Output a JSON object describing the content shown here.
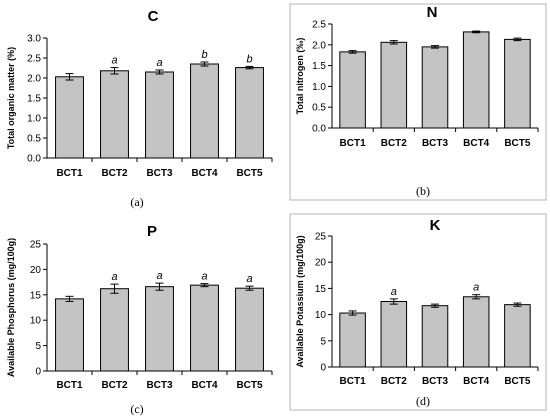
{
  "colors": {
    "bar_fill": "#c4c4c4",
    "bar_stroke": "#000000",
    "axis": "#000000",
    "frame": "#b5b5b5"
  },
  "chart_data": [
    {
      "type": "bar",
      "title": "C",
      "ylabel": "Total organic matter (%)",
      "caption": "(a)",
      "categories": [
        "BCT1",
        "BCT2",
        "BCT3",
        "BCT4",
        "BCT5"
      ],
      "values": [
        2.03,
        2.18,
        2.15,
        2.35,
        2.26
      ],
      "errors": [
        0.08,
        0.08,
        0.05,
        0.05,
        0.03
      ],
      "significance": [
        "",
        "a",
        "a",
        "b",
        "b"
      ],
      "ylim": [
        0,
        3.0
      ],
      "yticks": [
        "0.0",
        "0.5",
        "1.0",
        "1.5",
        "2.0",
        "2.5",
        "3.0"
      ],
      "grid": false
    },
    {
      "type": "bar",
      "title": "N",
      "ylabel": "Total nitrogen (‰)",
      "caption": "(b)",
      "categories": [
        "BCT1",
        "BCT2",
        "BCT3",
        "BCT4",
        "BCT5"
      ],
      "values": [
        1.83,
        2.06,
        1.95,
        2.31,
        2.13
      ],
      "errors": [
        0.03,
        0.04,
        0.03,
        0.02,
        0.03
      ],
      "significance": [
        "",
        "",
        "",
        "",
        ""
      ],
      "ylim": [
        0,
        2.5
      ],
      "yticks": [
        "0.0",
        "0.5",
        "1.0",
        "1.5",
        "2.0",
        "2.5"
      ],
      "grid": false
    },
    {
      "type": "bar",
      "title": "P",
      "ylabel": "Available Phosphorus (mg/100g)",
      "caption": "(c)",
      "categories": [
        "BCT1",
        "BCT2",
        "BCT3",
        "BCT4",
        "BCT5"
      ],
      "values": [
        14.2,
        16.2,
        16.6,
        16.9,
        16.3
      ],
      "errors": [
        0.5,
        0.9,
        0.7,
        0.3,
        0.4
      ],
      "significance": [
        "",
        "a",
        "a",
        "a",
        "a"
      ],
      "ylim": [
        0,
        25
      ],
      "yticks": [
        "0",
        "5",
        "10",
        "15",
        "20",
        "25"
      ],
      "grid": false
    },
    {
      "type": "bar",
      "title": "K",
      "ylabel": "Available Potassium (mg/100g)",
      "caption": "(d)",
      "categories": [
        "BCT1",
        "BCT2",
        "BCT3",
        "BCT4",
        "BCT5"
      ],
      "values": [
        10.3,
        12.5,
        11.7,
        13.4,
        11.9
      ],
      "errors": [
        0.4,
        0.5,
        0.3,
        0.4,
        0.3
      ],
      "significance": [
        "",
        "a",
        "",
        "a",
        ""
      ],
      "ylim": [
        0,
        25
      ],
      "yticks": [
        "0",
        "5",
        "10",
        "15",
        "20",
        "25"
      ],
      "grid": false
    }
  ]
}
